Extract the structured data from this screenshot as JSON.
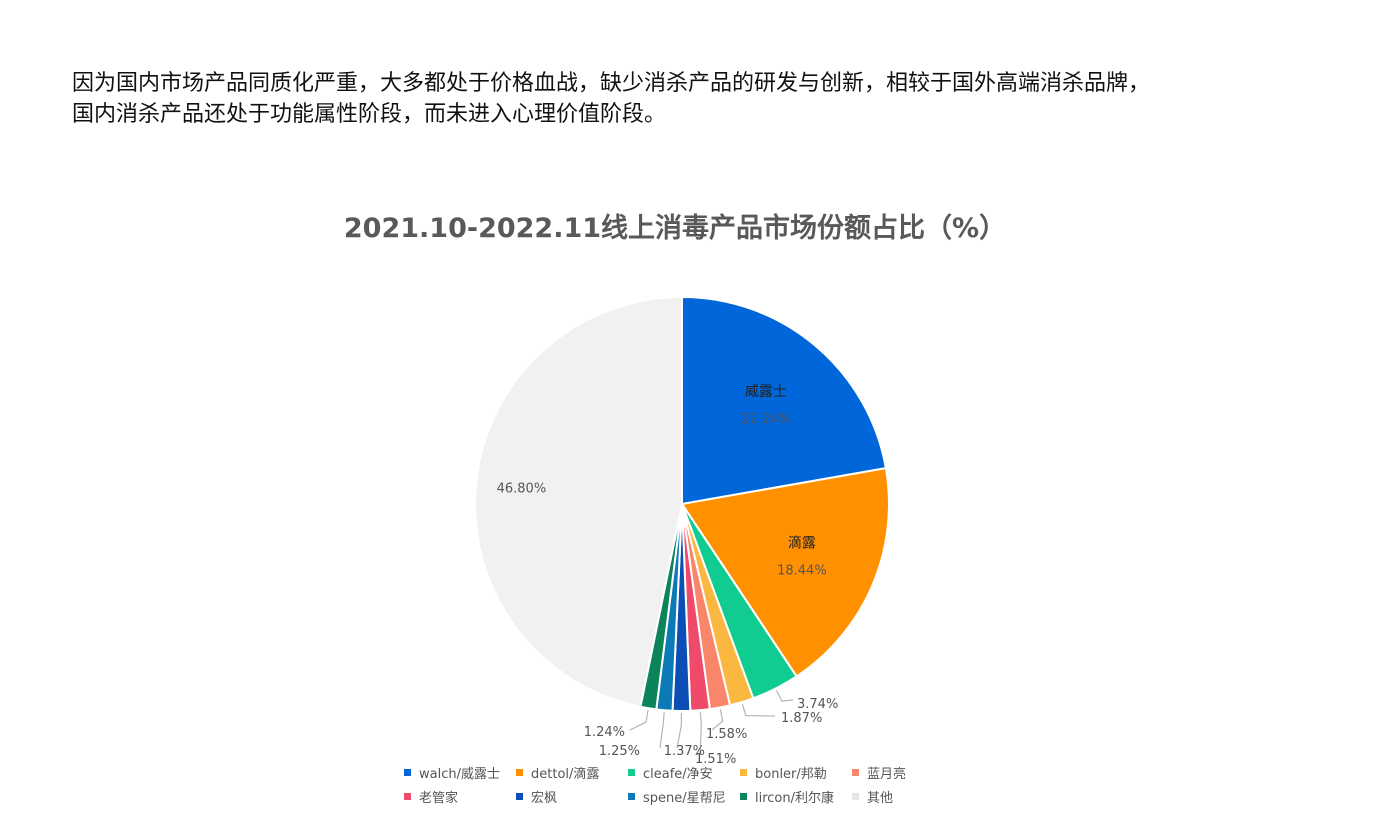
{
  "intro": {
    "line1": "因为国内市场产品同质化严重，大多都处于价格血战，缺少消杀产品的研发与创新，相较于国外高端消杀品牌，",
    "line2": "国内消杀产品还处于功能属性阶段，而未进入心理价值阶段。"
  },
  "chart_data": {
    "type": "pie",
    "title": "2021.10-2022.11线上消毒产品市场份额占比（%）",
    "legend_position": "bottom",
    "slices": [
      {
        "legend": "walch/威露士",
        "inner_label": "威露士",
        "value": 22.24,
        "value_label": "22.24%",
        "color": "#0066d9"
      },
      {
        "legend": "dettol/滴露",
        "inner_label": "滴露",
        "value": 18.44,
        "value_label": "18.44%",
        "color": "#ff9100"
      },
      {
        "legend": "cleafe/净安",
        "inner_label": "",
        "value": 3.74,
        "value_label": "3.74%",
        "color": "#10cc91"
      },
      {
        "legend": "bonler/邦勒",
        "inner_label": "",
        "value": 1.87,
        "value_label": "1.87%",
        "color": "#fbb841"
      },
      {
        "legend": "蓝月亮",
        "inner_label": "",
        "value": 1.58,
        "value_label": "1.58%",
        "color": "#f9866a"
      },
      {
        "legend": "老管家",
        "inner_label": "",
        "value": 1.51,
        "value_label": "1.51%",
        "color": "#ef4a6a"
      },
      {
        "legend": "宏枫",
        "inner_label": "",
        "value": 1.37,
        "value_label": "1.37%",
        "color": "#0c4eb5"
      },
      {
        "legend": "spene/星帮尼",
        "inner_label": "",
        "value": 1.25,
        "value_label": "1.25%",
        "color": "#0b7ab6"
      },
      {
        "legend": "lircon/利尔康",
        "inner_label": "",
        "value": 1.24,
        "value_label": "1.24%",
        "color": "#0a8458"
      },
      {
        "legend": "其他",
        "inner_label": "",
        "value": 46.8,
        "value_label": "46.80%",
        "color": "#f1f1f1"
      }
    ]
  }
}
